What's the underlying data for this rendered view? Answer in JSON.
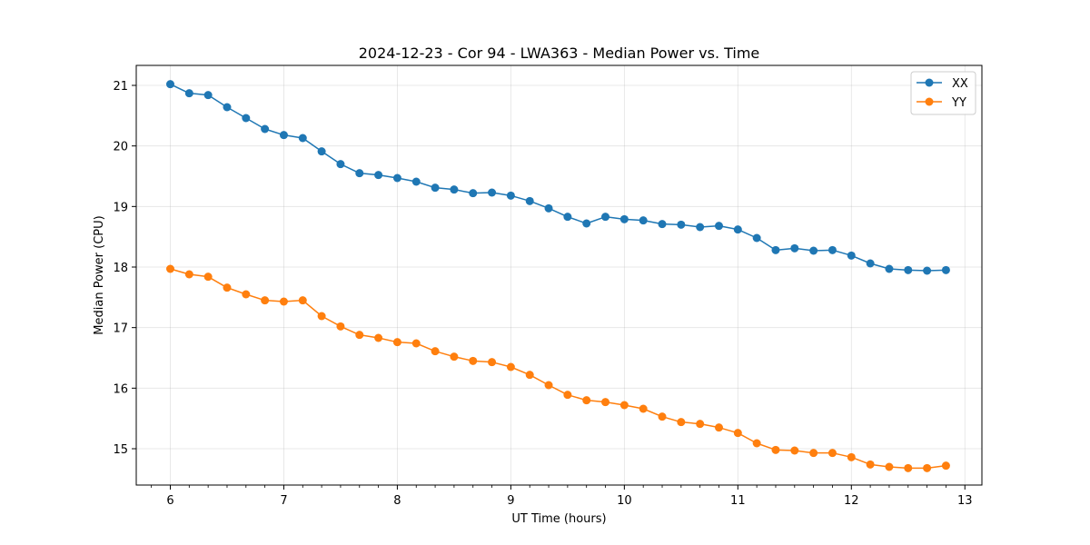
{
  "chart_data": {
    "type": "line",
    "title": "2024-12-23 - Cor 94 - LWA363 - Median Power vs. Time",
    "xlabel": "UT Time (hours)",
    "ylabel": "Median Power (CPU)",
    "xlim": [
      5.7,
      13.15
    ],
    "ylim": [
      14.4,
      21.33
    ],
    "xticks": [
      6,
      7,
      8,
      9,
      10,
      11,
      12,
      13
    ],
    "yticks": [
      15,
      16,
      17,
      18,
      19,
      20,
      21
    ],
    "grid": true,
    "legend_position": "top-right",
    "x": [
      6.0,
      6.1667,
      6.3333,
      6.5,
      6.6667,
      6.8333,
      7.0,
      7.1667,
      7.3333,
      7.5,
      7.6667,
      7.8333,
      8.0,
      8.1667,
      8.3333,
      8.5,
      8.6667,
      8.8333,
      9.0,
      9.1667,
      9.3333,
      9.5,
      9.6667,
      9.8333,
      10.0,
      10.1667,
      10.3333,
      10.5,
      10.6667,
      10.8333,
      11.0,
      11.1667,
      11.3333,
      11.5,
      11.6667,
      11.8333,
      12.0,
      12.1667,
      12.3333,
      12.5,
      12.6667,
      12.8333
    ],
    "series": [
      {
        "name": "XX",
        "color": "#1f77b4",
        "values": [
          21.02,
          20.87,
          20.84,
          20.64,
          20.46,
          20.28,
          20.18,
          20.13,
          19.91,
          19.7,
          19.55,
          19.52,
          19.47,
          19.41,
          19.31,
          19.28,
          19.22,
          19.23,
          19.18,
          19.09,
          18.97,
          18.83,
          18.72,
          18.83,
          18.79,
          18.77,
          18.71,
          18.7,
          18.66,
          18.68,
          18.62,
          18.48,
          18.28,
          18.31,
          18.27,
          18.28,
          18.19,
          18.06,
          17.97,
          17.95,
          17.94,
          17.95
        ]
      },
      {
        "name": "YY",
        "color": "#ff7f0e",
        "values": [
          17.97,
          17.88,
          17.84,
          17.66,
          17.55,
          17.45,
          17.43,
          17.45,
          17.19,
          17.02,
          16.88,
          16.83,
          16.76,
          16.74,
          16.61,
          16.52,
          16.45,
          16.43,
          16.35,
          16.22,
          16.05,
          15.89,
          15.8,
          15.77,
          15.72,
          15.66,
          15.53,
          15.44,
          15.41,
          15.35,
          15.26,
          15.09,
          14.98,
          14.97,
          14.93,
          14.93,
          14.86,
          14.74,
          14.7,
          14.68,
          14.68,
          14.72
        ]
      }
    ]
  }
}
